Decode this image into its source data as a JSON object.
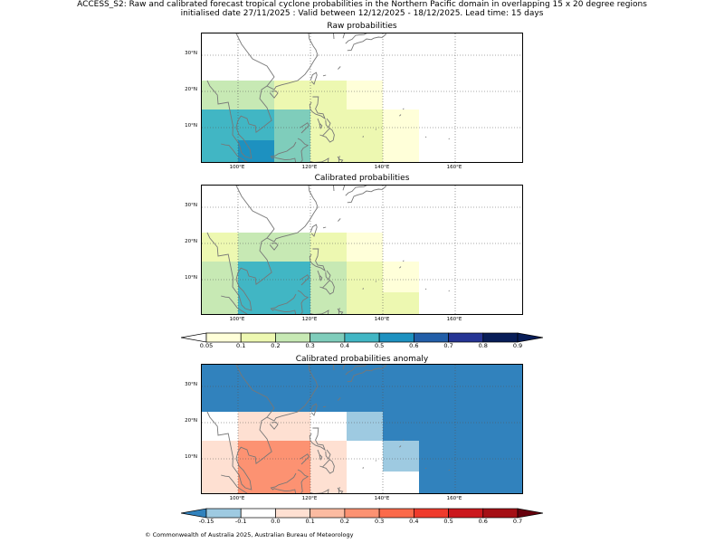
{
  "header": {
    "line1": "ACCESS_S2: Raw and calibrated forecast tropical cyclone probabilities in the Northern Pacific domain in overlapping 15 x 20 degree regions",
    "line2": "initialised date 27/11/2025 :  Valid between 12/12/2025 - 18/12/2025. Lead time: 15 days"
  },
  "lon_labels": [
    "100°E",
    "120°E",
    "140°E",
    "160°E"
  ],
  "lat_labels": [
    "30°N",
    "20°N",
    "10°N"
  ],
  "panels": [
    {
      "title": "Raw probabilities",
      "cells": [
        {
          "lon0": 90,
          "lon1": 110,
          "lat0": 15,
          "lat1": 23,
          "color": "#c7e9b4"
        },
        {
          "lon0": 110,
          "lon1": 130,
          "lat0": 15,
          "lat1": 23,
          "color": "#edf8b1"
        },
        {
          "lon0": 120,
          "lon1": 130,
          "lat0": 15,
          "lat1": 23,
          "color": "#edf8b1"
        },
        {
          "lon0": 130,
          "lon1": 140,
          "lat0": 15,
          "lat1": 23,
          "color": "#ffffd9"
        },
        {
          "lon0": 90,
          "lon1": 110,
          "lat0": 0,
          "lat1": 15,
          "color": "#41b6c4"
        },
        {
          "lon0": 110,
          "lon1": 120,
          "lat0": 0,
          "lat1": 15,
          "color": "#7fcdbb"
        },
        {
          "lon0": 120,
          "lon1": 140,
          "lat0": 0,
          "lat1": 15,
          "color": "#edf8b1"
        },
        {
          "lon0": 140,
          "lon1": 150,
          "lat0": 0,
          "lat1": 15,
          "color": "#ffffd9"
        },
        {
          "lon0": 100,
          "lon1": 110,
          "lat0": 0,
          "lat1": 6.5,
          "color": "#1d91c0"
        }
      ]
    },
    {
      "title": "Calibrated probabilities",
      "cells": [
        {
          "lon0": 90,
          "lon1": 100,
          "lat0": 15,
          "lat1": 23,
          "color": "#edf8b1"
        },
        {
          "lon0": 100,
          "lon1": 120,
          "lat0": 15,
          "lat1": 23,
          "color": "#c7e9b4"
        },
        {
          "lon0": 120,
          "lon1": 130,
          "lat0": 15,
          "lat1": 23,
          "color": "#edf8b1"
        },
        {
          "lon0": 130,
          "lon1": 140,
          "lat0": 15,
          "lat1": 23,
          "color": "#ffffd9"
        },
        {
          "lon0": 90,
          "lon1": 100,
          "lat0": 0,
          "lat1": 15,
          "color": "#c7e9b4"
        },
        {
          "lon0": 100,
          "lon1": 120,
          "lat0": 0,
          "lat1": 15,
          "color": "#41b6c4"
        },
        {
          "lon0": 120,
          "lon1": 130,
          "lat0": 0,
          "lat1": 15,
          "color": "#c7e9b4"
        },
        {
          "lon0": 130,
          "lon1": 140,
          "lat0": 0,
          "lat1": 15,
          "color": "#edf8b1"
        },
        {
          "lon0": 140,
          "lon1": 150,
          "lat0": 6.5,
          "lat1": 15,
          "color": "#ffffd9"
        },
        {
          "lon0": 140,
          "lon1": 150,
          "lat0": 0,
          "lat1": 6.5,
          "color": "#edf8b1"
        }
      ]
    },
    {
      "title": "Calibrated probabilities anomaly",
      "cells": [
        {
          "lon0": 90,
          "lon1": 180,
          "lat0": 23,
          "lat1": 37,
          "color": "#3182bd"
        },
        {
          "lon0": 140,
          "lon1": 180,
          "lat0": 15,
          "lat1": 23,
          "color": "#3182bd"
        },
        {
          "lon0": 130,
          "lon1": 140,
          "lat0": 15,
          "lat1": 23,
          "color": "#9ecae1"
        },
        {
          "lon0": 100,
          "lon1": 120,
          "lat0": 15,
          "lat1": 23,
          "color": "#fee0d2"
        },
        {
          "lon0": 90,
          "lon1": 100,
          "lat0": 0,
          "lat1": 15,
          "color": "#fee0d2"
        },
        {
          "lon0": 100,
          "lon1": 120,
          "lat0": 0,
          "lat1": 15,
          "color": "#fc9272"
        },
        {
          "lon0": 120,
          "lon1": 130,
          "lat0": 0,
          "lat1": 15,
          "color": "#fee0d2"
        },
        {
          "lon0": 140,
          "lon1": 150,
          "lat0": 6.5,
          "lat1": 15,
          "color": "#9ecae1"
        },
        {
          "lon0": 150,
          "lon1": 180,
          "lat0": 0,
          "lat1": 15,
          "color": "#3182bd"
        }
      ]
    }
  ],
  "colorbar_prob": {
    "ticks": [
      "0.05",
      "0.1",
      "0.2",
      "0.3",
      "0.4",
      "0.5",
      "0.6",
      "0.7",
      "0.8",
      "0.9"
    ],
    "under_color": "#ffffff",
    "colors": [
      "#ffffd9",
      "#edf8b1",
      "#c7e9b4",
      "#7fcdbb",
      "#41b6c4",
      "#1d91c0",
      "#225ea8",
      "#253494",
      "#081d58"
    ],
    "over_color": "#081d58"
  },
  "colorbar_anom": {
    "ticks": [
      "-0.15",
      "-0.1",
      "0.0",
      "0.1",
      "0.2",
      "0.3",
      "0.4",
      "0.5",
      "0.6",
      "0.7"
    ],
    "under_color": "#3182bd",
    "colors": [
      "#9ecae1",
      "#ffffff",
      "#fee0d2",
      "#fcbba1",
      "#fc9272",
      "#fb6a4a",
      "#ef3b2c",
      "#cb181d",
      "#a50f15"
    ],
    "over_color": "#67000d"
  },
  "footer": "© Commonwealth of Australia 2025, Australian Bureau of Meteorology"
}
